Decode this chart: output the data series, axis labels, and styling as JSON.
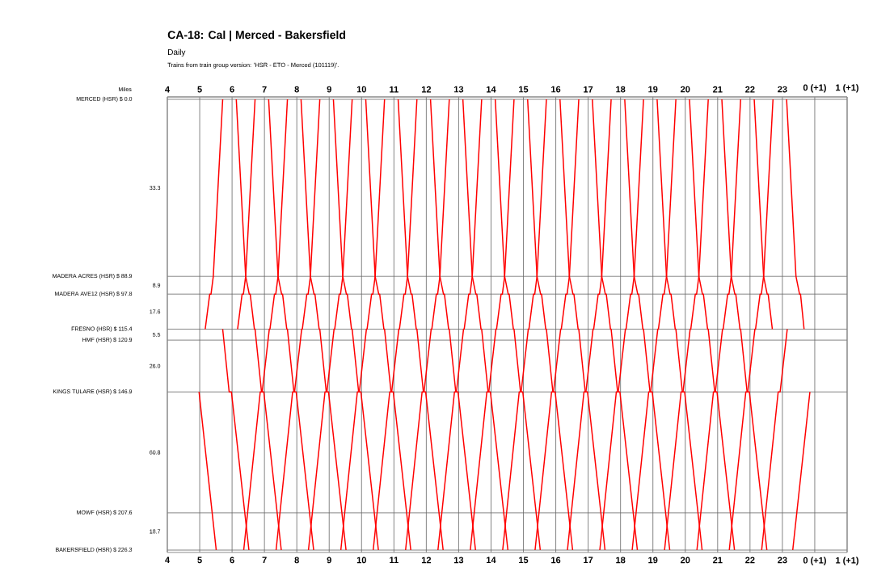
{
  "chart_data": {
    "type": "line",
    "title": "CA-18: Cal | Merced - Bakersfield",
    "subtitle": "Daily",
    "ylabel": "Miles",
    "color": "#ff0000",
    "grid": true,
    "marker": "none",
    "line_style": "solid",
    "annotations": [
      "Trains from train group version: 'HSR - ETO - Merced (101119)'.",
      "33.3",
      "8.9",
      "17.6",
      "5.5",
      "26.0",
      "60.8",
      "18.7"
    ],
    "xlim": [
      4,
      25
    ],
    "x2lim": [
      4,
      25
    ],
    "xticks": [
      4,
      5,
      6,
      7,
      8,
      9,
      10,
      11,
      12,
      13,
      14,
      15,
      16,
      17,
      18,
      19,
      20,
      21,
      22,
      23,
      {
        "value": 24,
        "label": "0 (+1)"
      },
      {
        "value": 25,
        "label": "1 (+1)"
      }
    ],
    "x2ticks": [
      4,
      5,
      6,
      7,
      8,
      9,
      10,
      11,
      12,
      13,
      14,
      15,
      16,
      17,
      18,
      19,
      20,
      21,
      22,
      23,
      {
        "value": 24,
        "label": "0 (+1)"
      },
      {
        "value": 25,
        "label": "1 (+1)"
      }
    ],
    "ylim": [
      227.5,
      -1.2
    ],
    "yticks": [
      {
        "value": 0,
        "label": "MERCED (HSR) $  0.0"
      },
      {
        "value": 88.9,
        "label": "MADERA ACRES (HSR) $  88.9"
      },
      {
        "value": 97.8,
        "label": "MADERA AVE12 (HSR) $  97.8"
      },
      {
        "value": 115.4,
        "label": "FRESNO (HSR) $  115.4"
      },
      {
        "value": 120.9,
        "label": "HMF (HSR) $  120.9"
      },
      {
        "value": 146.9,
        "label": "KINGS TULARE (HSR) $  146.9"
      },
      {
        "value": 207.6,
        "label": "MOWF (HSR) $  207.6"
      },
      {
        "value": 226.3,
        "label": "BAKERSFIELD (HSR) $  226.3"
      }
    ],
    "series": [
      {
        "x": [
          4.98,
          5.51
        ],
        "values": [
          146.9,
          226.3
        ]
      },
      {
        "x": [
          5.71,
          5.91,
          5.98,
          6.52
        ],
        "values": [
          115.4,
          146.9,
          146.9,
          226.3
        ]
      },
      {
        "x": [
          6.13,
          6.42,
          6.53,
          6.56,
          6.69,
          6.71,
          6.91,
          6.98,
          7.52
        ],
        "values": [
          0,
          88.9,
          97.8,
          97.8,
          115.4,
          115.4,
          146.9,
          146.9,
          226.3
        ]
      },
      {
        "x": [
          7.13,
          7.42,
          7.53,
          7.56,
          7.69,
          7.71,
          7.91,
          7.98,
          8.52
        ],
        "values": [
          0,
          88.9,
          97.8,
          97.8,
          115.4,
          115.4,
          146.9,
          146.9,
          226.3
        ]
      },
      {
        "x": [
          8.13,
          8.42,
          8.53,
          8.56,
          8.69,
          8.71,
          8.91,
          8.98,
          9.52
        ],
        "values": [
          0,
          88.9,
          97.8,
          97.8,
          115.4,
          115.4,
          146.9,
          146.9,
          226.3
        ]
      },
      {
        "x": [
          9.13,
          9.42,
          9.53,
          9.56,
          9.69,
          9.71,
          9.91,
          9.98,
          10.52
        ],
        "values": [
          0,
          88.9,
          97.8,
          97.8,
          115.4,
          115.4,
          146.9,
          146.9,
          226.3
        ]
      },
      {
        "x": [
          10.13,
          10.42,
          10.53,
          10.56,
          10.69,
          10.71,
          10.91,
          10.98,
          11.52
        ],
        "values": [
          0,
          88.9,
          97.8,
          97.8,
          115.4,
          115.4,
          146.9,
          146.9,
          226.3
        ]
      },
      {
        "x": [
          11.13,
          11.42,
          11.53,
          11.56,
          11.69,
          11.71,
          11.91,
          11.98,
          12.52
        ],
        "values": [
          0,
          88.9,
          97.8,
          97.8,
          115.4,
          115.4,
          146.9,
          146.9,
          226.3
        ]
      },
      {
        "x": [
          12.13,
          12.42,
          12.53,
          12.56,
          12.69,
          12.71,
          12.91,
          12.98,
          13.52
        ],
        "values": [
          0,
          88.9,
          97.8,
          97.8,
          115.4,
          115.4,
          146.9,
          146.9,
          226.3
        ]
      },
      {
        "x": [
          13.13,
          13.42,
          13.53,
          13.56,
          13.69,
          13.71,
          13.91,
          13.98,
          14.52
        ],
        "values": [
          0,
          88.9,
          97.8,
          97.8,
          115.4,
          115.4,
          146.9,
          146.9,
          226.3
        ]
      },
      {
        "x": [
          14.13,
          14.42,
          14.53,
          14.56,
          14.69,
          14.71,
          14.91,
          14.98,
          15.52
        ],
        "values": [
          0,
          88.9,
          97.8,
          97.8,
          115.4,
          115.4,
          146.9,
          146.9,
          226.3
        ]
      },
      {
        "x": [
          15.13,
          15.42,
          15.53,
          15.56,
          15.69,
          15.71,
          15.91,
          15.98,
          16.52
        ],
        "values": [
          0,
          88.9,
          97.8,
          97.8,
          115.4,
          115.4,
          146.9,
          146.9,
          226.3
        ]
      },
      {
        "x": [
          16.13,
          16.42,
          16.53,
          16.56,
          16.69,
          16.71,
          16.91,
          16.98,
          17.52
        ],
        "values": [
          0,
          88.9,
          97.8,
          97.8,
          115.4,
          115.4,
          146.9,
          146.9,
          226.3
        ]
      },
      {
        "x": [
          17.13,
          17.42,
          17.53,
          17.56,
          17.69,
          17.71,
          17.91,
          17.98,
          18.52
        ],
        "values": [
          0,
          88.9,
          97.8,
          97.8,
          115.4,
          115.4,
          146.9,
          146.9,
          226.3
        ]
      },
      {
        "x": [
          18.13,
          18.42,
          18.53,
          18.56,
          18.69,
          18.71,
          18.91,
          18.98,
          19.52
        ],
        "values": [
          0,
          88.9,
          97.8,
          97.8,
          115.4,
          115.4,
          146.9,
          146.9,
          226.3
        ]
      },
      {
        "x": [
          19.13,
          19.42,
          19.53,
          19.56,
          19.69,
          19.71,
          19.91,
          19.98,
          20.52
        ],
        "values": [
          0,
          88.9,
          97.8,
          97.8,
          115.4,
          115.4,
          146.9,
          146.9,
          226.3
        ]
      },
      {
        "x": [
          20.13,
          20.42,
          20.53,
          20.56,
          20.69,
          20.71,
          20.91,
          20.98,
          21.52
        ],
        "values": [
          0,
          88.9,
          97.8,
          97.8,
          115.4,
          115.4,
          146.9,
          146.9,
          226.3
        ]
      },
      {
        "x": [
          21.13,
          21.42,
          21.53,
          21.56,
          21.69,
          21.71,
          21.91,
          21.98,
          22.52
        ],
        "values": [
          0,
          88.9,
          97.8,
          97.8,
          115.4,
          115.4,
          146.9,
          146.9,
          226.3
        ]
      },
      {
        "x": [
          22.13,
          22.42,
          22.53,
          22.56,
          22.69
        ],
        "values": [
          0,
          88.9,
          97.8,
          97.8,
          115.4
        ]
      },
      {
        "x": [
          23.13,
          23.42,
          23.53,
          23.56,
          23.67
        ],
        "values": [
          0,
          88.9,
          97.8,
          97.8,
          115.4
        ]
      },
      {
        "x": [
          5.17,
          5.31,
          5.35,
          5.42,
          5.71
        ],
        "values": [
          115.4,
          97.8,
          97.8,
          88.9,
          0
        ]
      },
      {
        "x": [
          6.17,
          6.31,
          6.35,
          6.42,
          6.71
        ],
        "values": [
          115.4,
          97.8,
          97.8,
          88.9,
          0
        ]
      },
      {
        "x": [
          6.36,
          6.87,
          6.93,
          7.15,
          7.17,
          7.31,
          7.35,
          7.42,
          7.71
        ],
        "values": [
          226.3,
          146.9,
          146.9,
          115.4,
          115.4,
          97.8,
          97.8,
          88.9,
          0
        ]
      },
      {
        "x": [
          7.36,
          7.87,
          7.93,
          8.15,
          8.17,
          8.31,
          8.35,
          8.42,
          8.71
        ],
        "values": [
          226.3,
          146.9,
          146.9,
          115.4,
          115.4,
          97.8,
          97.8,
          88.9,
          0
        ]
      },
      {
        "x": [
          8.36,
          8.87,
          8.93,
          9.15,
          9.17,
          9.31,
          9.35,
          9.42,
          9.71
        ],
        "values": [
          226.3,
          146.9,
          146.9,
          115.4,
          115.4,
          97.8,
          97.8,
          88.9,
          0
        ]
      },
      {
        "x": [
          9.36,
          9.87,
          9.93,
          10.15,
          10.17,
          10.31,
          10.35,
          10.42,
          10.71
        ],
        "values": [
          226.3,
          146.9,
          146.9,
          115.4,
          115.4,
          97.8,
          97.8,
          88.9,
          0
        ]
      },
      {
        "x": [
          10.36,
          10.87,
          10.93,
          11.15,
          11.17,
          11.31,
          11.35,
          11.42,
          11.71
        ],
        "values": [
          226.3,
          146.9,
          146.9,
          115.4,
          115.4,
          97.8,
          97.8,
          88.9,
          0
        ]
      },
      {
        "x": [
          11.36,
          11.87,
          11.93,
          12.15,
          12.17,
          12.31,
          12.35,
          12.42,
          12.71
        ],
        "values": [
          226.3,
          146.9,
          146.9,
          115.4,
          115.4,
          97.8,
          97.8,
          88.9,
          0
        ]
      },
      {
        "x": [
          12.36,
          12.87,
          12.93,
          13.15,
          13.17,
          13.31,
          13.35,
          13.42,
          13.71
        ],
        "values": [
          226.3,
          146.9,
          146.9,
          115.4,
          115.4,
          97.8,
          97.8,
          88.9,
          0
        ]
      },
      {
        "x": [
          13.36,
          13.87,
          13.93,
          14.15,
          14.17,
          14.31,
          14.35,
          14.42,
          14.71
        ],
        "values": [
          226.3,
          146.9,
          146.9,
          115.4,
          115.4,
          97.8,
          97.8,
          88.9,
          0
        ]
      },
      {
        "x": [
          14.36,
          14.87,
          14.93,
          15.15,
          15.17,
          15.31,
          15.35,
          15.42,
          15.71
        ],
        "values": [
          226.3,
          146.9,
          146.9,
          115.4,
          115.4,
          97.8,
          97.8,
          88.9,
          0
        ]
      },
      {
        "x": [
          15.36,
          15.87,
          15.93,
          16.15,
          16.17,
          16.31,
          16.35,
          16.42,
          16.71
        ],
        "values": [
          226.3,
          146.9,
          146.9,
          115.4,
          115.4,
          97.8,
          97.8,
          88.9,
          0
        ]
      },
      {
        "x": [
          16.36,
          16.87,
          16.93,
          17.15,
          17.17,
          17.31,
          17.35,
          17.42,
          17.71
        ],
        "values": [
          226.3,
          146.9,
          146.9,
          115.4,
          115.4,
          97.8,
          97.8,
          88.9,
          0
        ]
      },
      {
        "x": [
          17.36,
          17.87,
          17.93,
          18.15,
          18.17,
          18.31,
          18.35,
          18.42,
          18.71
        ],
        "values": [
          226.3,
          146.9,
          146.9,
          115.4,
          115.4,
          97.8,
          97.8,
          88.9,
          0
        ]
      },
      {
        "x": [
          18.36,
          18.87,
          18.93,
          19.15,
          19.17,
          19.31,
          19.35,
          19.42,
          19.71
        ],
        "values": [
          226.3,
          146.9,
          146.9,
          115.4,
          115.4,
          97.8,
          97.8,
          88.9,
          0
        ]
      },
      {
        "x": [
          19.36,
          19.87,
          19.93,
          20.15,
          20.17,
          20.31,
          20.35,
          20.42,
          20.71
        ],
        "values": [
          226.3,
          146.9,
          146.9,
          115.4,
          115.4,
          97.8,
          97.8,
          88.9,
          0
        ]
      },
      {
        "x": [
          20.36,
          20.87,
          20.93,
          21.15,
          21.17,
          21.31,
          21.35,
          21.42,
          21.71
        ],
        "values": [
          226.3,
          146.9,
          146.9,
          115.4,
          115.4,
          97.8,
          97.8,
          88.9,
          0
        ]
      },
      {
        "x": [
          21.36,
          21.87,
          21.93,
          22.15,
          22.17,
          22.31,
          22.35,
          22.42,
          22.71
        ],
        "values": [
          226.3,
          146.9,
          146.9,
          115.4,
          115.4,
          97.8,
          97.8,
          88.9,
          0
        ]
      },
      {
        "x": [
          22.36,
          22.87,
          22.93,
          23.15
        ],
        "values": [
          226.3,
          146.9,
          146.9,
          115.4
        ]
      },
      {
        "x": [
          23.32,
          23.85
        ],
        "values": [
          226.3,
          146.9
        ]
      }
    ]
  }
}
